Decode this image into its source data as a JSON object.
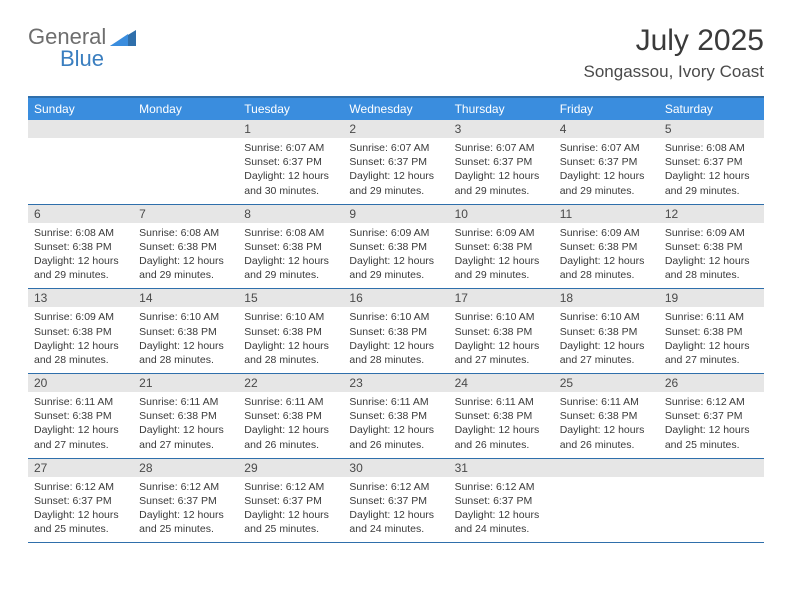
{
  "logo": {
    "part1": "General",
    "part2": "Blue"
  },
  "title": "July 2025",
  "location": "Songassou, Ivory Coast",
  "weekday_bg": "#3a8dde",
  "weekday_fg": "#ffffff",
  "daynum_bg": "#e6e6e6",
  "border_color": "#2f6fab",
  "weekdays": [
    "Sunday",
    "Monday",
    "Tuesday",
    "Wednesday",
    "Thursday",
    "Friday",
    "Saturday"
  ],
  "weeks": [
    [
      {
        "num": "",
        "lines": []
      },
      {
        "num": "",
        "lines": []
      },
      {
        "num": "1",
        "lines": [
          "Sunrise: 6:07 AM",
          "Sunset: 6:37 PM",
          "Daylight: 12 hours and 30 minutes."
        ]
      },
      {
        "num": "2",
        "lines": [
          "Sunrise: 6:07 AM",
          "Sunset: 6:37 PM",
          "Daylight: 12 hours and 29 minutes."
        ]
      },
      {
        "num": "3",
        "lines": [
          "Sunrise: 6:07 AM",
          "Sunset: 6:37 PM",
          "Daylight: 12 hours and 29 minutes."
        ]
      },
      {
        "num": "4",
        "lines": [
          "Sunrise: 6:07 AM",
          "Sunset: 6:37 PM",
          "Daylight: 12 hours and 29 minutes."
        ]
      },
      {
        "num": "5",
        "lines": [
          "Sunrise: 6:08 AM",
          "Sunset: 6:37 PM",
          "Daylight: 12 hours and 29 minutes."
        ]
      }
    ],
    [
      {
        "num": "6",
        "lines": [
          "Sunrise: 6:08 AM",
          "Sunset: 6:38 PM",
          "Daylight: 12 hours and 29 minutes."
        ]
      },
      {
        "num": "7",
        "lines": [
          "Sunrise: 6:08 AM",
          "Sunset: 6:38 PM",
          "Daylight: 12 hours and 29 minutes."
        ]
      },
      {
        "num": "8",
        "lines": [
          "Sunrise: 6:08 AM",
          "Sunset: 6:38 PM",
          "Daylight: 12 hours and 29 minutes."
        ]
      },
      {
        "num": "9",
        "lines": [
          "Sunrise: 6:09 AM",
          "Sunset: 6:38 PM",
          "Daylight: 12 hours and 29 minutes."
        ]
      },
      {
        "num": "10",
        "lines": [
          "Sunrise: 6:09 AM",
          "Sunset: 6:38 PM",
          "Daylight: 12 hours and 29 minutes."
        ]
      },
      {
        "num": "11",
        "lines": [
          "Sunrise: 6:09 AM",
          "Sunset: 6:38 PM",
          "Daylight: 12 hours and 28 minutes."
        ]
      },
      {
        "num": "12",
        "lines": [
          "Sunrise: 6:09 AM",
          "Sunset: 6:38 PM",
          "Daylight: 12 hours and 28 minutes."
        ]
      }
    ],
    [
      {
        "num": "13",
        "lines": [
          "Sunrise: 6:09 AM",
          "Sunset: 6:38 PM",
          "Daylight: 12 hours and 28 minutes."
        ]
      },
      {
        "num": "14",
        "lines": [
          "Sunrise: 6:10 AM",
          "Sunset: 6:38 PM",
          "Daylight: 12 hours and 28 minutes."
        ]
      },
      {
        "num": "15",
        "lines": [
          "Sunrise: 6:10 AM",
          "Sunset: 6:38 PM",
          "Daylight: 12 hours and 28 minutes."
        ]
      },
      {
        "num": "16",
        "lines": [
          "Sunrise: 6:10 AM",
          "Sunset: 6:38 PM",
          "Daylight: 12 hours and 28 minutes."
        ]
      },
      {
        "num": "17",
        "lines": [
          "Sunrise: 6:10 AM",
          "Sunset: 6:38 PM",
          "Daylight: 12 hours and 27 minutes."
        ]
      },
      {
        "num": "18",
        "lines": [
          "Sunrise: 6:10 AM",
          "Sunset: 6:38 PM",
          "Daylight: 12 hours and 27 minutes."
        ]
      },
      {
        "num": "19",
        "lines": [
          "Sunrise: 6:11 AM",
          "Sunset: 6:38 PM",
          "Daylight: 12 hours and 27 minutes."
        ]
      }
    ],
    [
      {
        "num": "20",
        "lines": [
          "Sunrise: 6:11 AM",
          "Sunset: 6:38 PM",
          "Daylight: 12 hours and 27 minutes."
        ]
      },
      {
        "num": "21",
        "lines": [
          "Sunrise: 6:11 AM",
          "Sunset: 6:38 PM",
          "Daylight: 12 hours and 27 minutes."
        ]
      },
      {
        "num": "22",
        "lines": [
          "Sunrise: 6:11 AM",
          "Sunset: 6:38 PM",
          "Daylight: 12 hours and 26 minutes."
        ]
      },
      {
        "num": "23",
        "lines": [
          "Sunrise: 6:11 AM",
          "Sunset: 6:38 PM",
          "Daylight: 12 hours and 26 minutes."
        ]
      },
      {
        "num": "24",
        "lines": [
          "Sunrise: 6:11 AM",
          "Sunset: 6:38 PM",
          "Daylight: 12 hours and 26 minutes."
        ]
      },
      {
        "num": "25",
        "lines": [
          "Sunrise: 6:11 AM",
          "Sunset: 6:38 PM",
          "Daylight: 12 hours and 26 minutes."
        ]
      },
      {
        "num": "26",
        "lines": [
          "Sunrise: 6:12 AM",
          "Sunset: 6:37 PM",
          "Daylight: 12 hours and 25 minutes."
        ]
      }
    ],
    [
      {
        "num": "27",
        "lines": [
          "Sunrise: 6:12 AM",
          "Sunset: 6:37 PM",
          "Daylight: 12 hours and 25 minutes."
        ]
      },
      {
        "num": "28",
        "lines": [
          "Sunrise: 6:12 AM",
          "Sunset: 6:37 PM",
          "Daylight: 12 hours and 25 minutes."
        ]
      },
      {
        "num": "29",
        "lines": [
          "Sunrise: 6:12 AM",
          "Sunset: 6:37 PM",
          "Daylight: 12 hours and 25 minutes."
        ]
      },
      {
        "num": "30",
        "lines": [
          "Sunrise: 6:12 AM",
          "Sunset: 6:37 PM",
          "Daylight: 12 hours and 24 minutes."
        ]
      },
      {
        "num": "31",
        "lines": [
          "Sunrise: 6:12 AM",
          "Sunset: 6:37 PM",
          "Daylight: 12 hours and 24 minutes."
        ]
      },
      {
        "num": "",
        "lines": []
      },
      {
        "num": "",
        "lines": []
      }
    ]
  ]
}
